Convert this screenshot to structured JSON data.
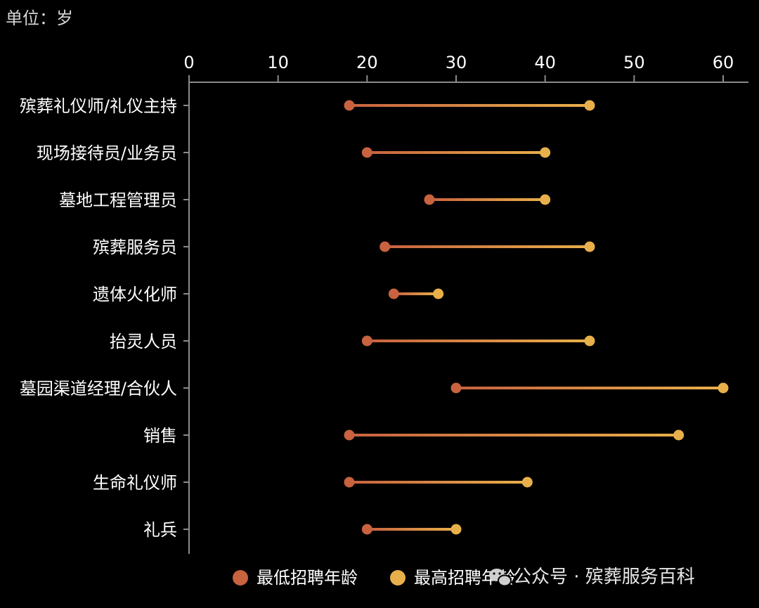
{
  "unit_label": "单位：岁",
  "watermark": "公众号 · 殡葬服务百科",
  "colors": {
    "background": "#000000",
    "min_series": "#c8623f",
    "max_series": "#e8b04a",
    "axis": "#8a8a8a"
  },
  "chart_data": {
    "type": "dumbbell",
    "orientation": "horizontal",
    "xlim": [
      0,
      60
    ],
    "xticks": [
      0,
      10,
      20,
      30,
      40,
      50,
      60
    ],
    "xtick_labels": [
      "0",
      "10",
      "20",
      "30",
      "40",
      "50",
      "60"
    ],
    "categories": [
      "殡葬礼仪师/礼仪主持",
      "现场接待员/业务员",
      "墓地工程管理员",
      "殡葬服务员",
      "遗体火化师",
      "抬灵人员",
      "墓园渠道经理/合伙人",
      "销售",
      "生命礼仪师",
      "礼兵"
    ],
    "series": [
      {
        "name": "最低招聘年龄",
        "values": [
          18,
          20,
          27,
          22,
          23,
          20,
          30,
          18,
          18,
          20
        ]
      },
      {
        "name": "最高招聘年龄",
        "values": [
          45,
          40,
          40,
          45,
          28,
          45,
          60,
          55,
          38,
          30
        ]
      }
    ],
    "legend_position": "bottom",
    "grid": false,
    "x_axis_position": "top"
  }
}
